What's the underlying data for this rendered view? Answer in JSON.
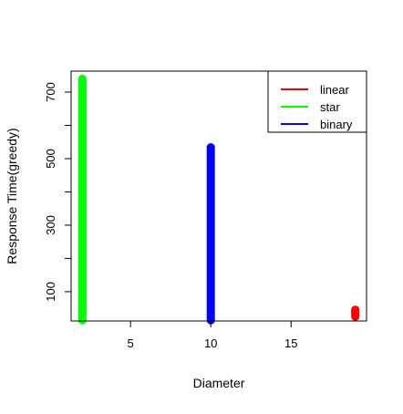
{
  "chart_data": {
    "type": "scatter",
    "title": "",
    "xlabel": "Diameter",
    "ylabel": "Response Time(greedy)",
    "xlim": [
      1.3,
      19.7
    ],
    "ylim": [
      12,
      763
    ],
    "x_ticks": [
      5,
      10,
      15
    ],
    "y_ticks": [
      100,
      300,
      500,
      700
    ],
    "y_minor_ticks": [
      200,
      400,
      600
    ],
    "grid": false,
    "legend_position": "top-right",
    "series": [
      {
        "name": "linear",
        "color": "#ff0000",
        "x": 19,
        "y_min": 25,
        "y_max": 46
      },
      {
        "name": "star",
        "color": "#00ff00",
        "x": 2,
        "y_min": 14,
        "y_max": 740
      },
      {
        "name": "binary",
        "color": "#0000ff",
        "x": 10,
        "y_min": 14,
        "y_max": 534
      }
    ]
  }
}
